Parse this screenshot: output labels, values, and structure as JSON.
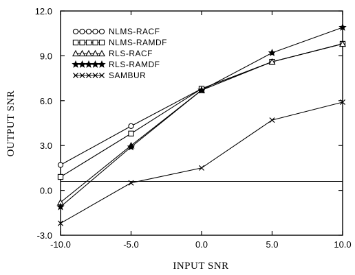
{
  "chart_data": {
    "type": "line",
    "xlabel": "INPUT SNR",
    "ylabel": "OUTPUT SNR",
    "x": [
      -10.0,
      -5.0,
      0.0,
      5.0,
      10.0
    ],
    "xlim": [
      -10,
      10
    ],
    "ylim": [
      -3,
      12
    ],
    "x_tick_labels": [
      "-10.0",
      "-5.0",
      "0.0",
      "5.0",
      "10.0"
    ],
    "y_tick_labels": [
      "-3.0",
      "0.0",
      "3.0",
      "6.0",
      "9.0",
      "12.0"
    ],
    "x_ticks": [
      -10,
      -5,
      0,
      5,
      10
    ],
    "y_ticks": [
      -3,
      0,
      3,
      6,
      9,
      12
    ],
    "reference_line_y": 0.6,
    "series": [
      {
        "name": "NLMS-RACF",
        "marker": "circle",
        "values": [
          1.7,
          4.3,
          6.8,
          8.6,
          9.8
        ]
      },
      {
        "name": "NLMS-RAMDF",
        "marker": "square",
        "values": [
          0.9,
          3.8,
          6.8,
          8.6,
          9.8
        ]
      },
      {
        "name": "RLS-RACF",
        "marker": "triangle",
        "values": [
          -0.8,
          3.0,
          6.7,
          8.6,
          9.8
        ]
      },
      {
        "name": "RLS-RAMDF",
        "marker": "star",
        "values": [
          -1.1,
          2.9,
          6.7,
          9.2,
          10.9
        ]
      },
      {
        "name": "SAMBUR",
        "marker": "x",
        "values": [
          -2.2,
          0.5,
          1.5,
          4.7,
          5.9
        ]
      }
    ],
    "legend_position": "top-left",
    "grid": false,
    "line_color": "#000000"
  }
}
